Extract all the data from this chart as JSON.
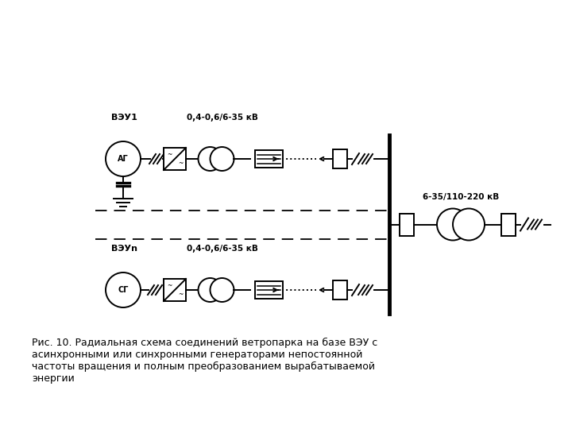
{
  "bg_color": "#ffffff",
  "line_color": "#000000",
  "title_text": "Рис. 10. Радиальная схема соединений ветропарка на базе ВЭУ с\nасинхронными или синхронными генераторами непостоянной\nчастоты вращения и полным преобразованием вырабатываемой\nэнергии",
  "label_veu1": "ВЭУ1",
  "label_veun": "ВЭУn",
  "label_voltage1": "0,4-0,6/6-35 кВ",
  "label_voltage2": "0,4-0,6/6-35 кВ",
  "label_voltage_main": "6-35/110-220 кВ",
  "label_ag": "АГ",
  "label_sg": "СГ",
  "fig_width": 7.2,
  "fig_height": 5.4,
  "dpi": 100
}
